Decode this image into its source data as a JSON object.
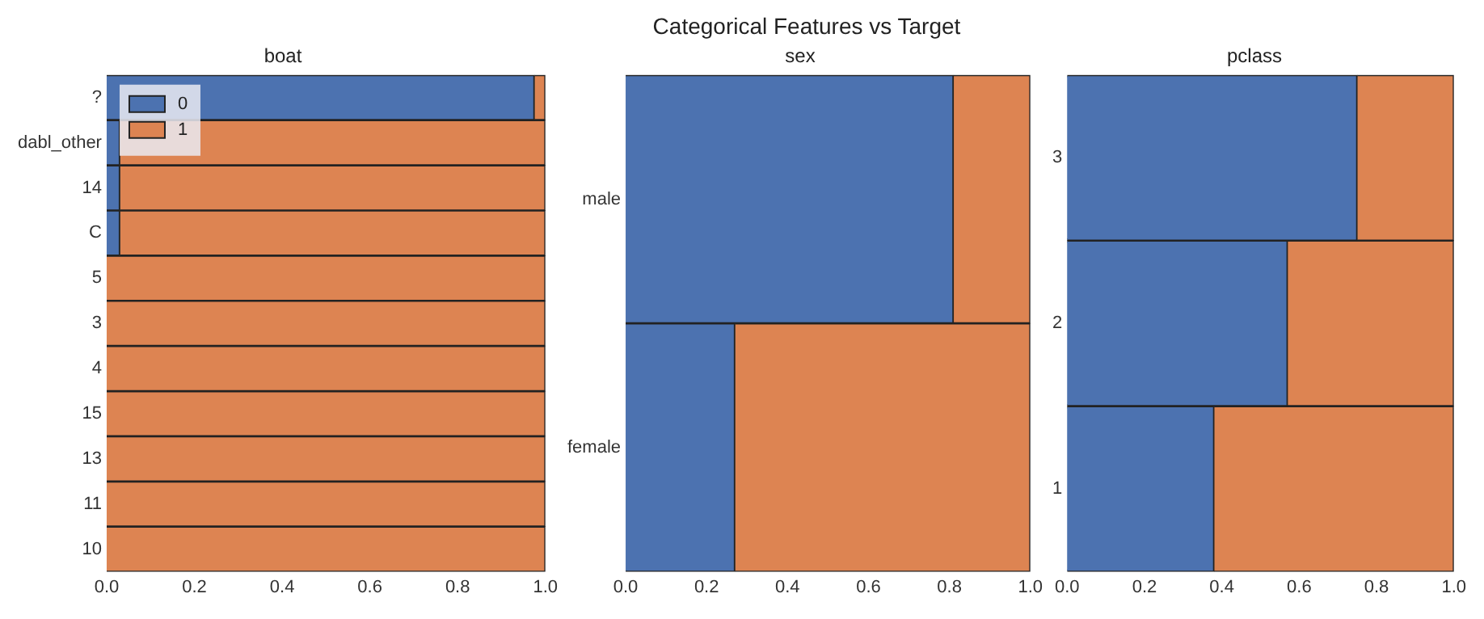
{
  "chart_data": [
    {
      "type": "other",
      "title": "Categorical Features vs Target"
    },
    {
      "type": "bar",
      "title": "boat",
      "orientation": "horizontal",
      "stacked": true,
      "legend": "top left",
      "grid": false,
      "categories": [
        "?",
        "dabl_other",
        "14",
        "C",
        "5",
        "3",
        "4",
        "15",
        "13",
        "11",
        "10"
      ],
      "series": [
        {
          "name": "0",
          "color": "#4c72b0",
          "values": [
            0.975,
            0.03,
            0.03,
            0.03,
            0,
            0,
            0,
            0,
            0,
            0,
            0
          ]
        },
        {
          "name": "1",
          "color": "#dd8452",
          "values": [
            0.025,
            0.97,
            0.97,
            0.97,
            1,
            1,
            1,
            1,
            1,
            1,
            1
          ]
        }
      ],
      "xlim": [
        0,
        1
      ],
      "xticks": [
        {
          "value": 0,
          "label": "0.0"
        },
        {
          "value": 0.2,
          "label": "0.2"
        },
        {
          "value": 0.4,
          "label": "0.4"
        },
        {
          "value": 0.6,
          "label": "0.6"
        },
        {
          "value": 0.8,
          "label": "0.8"
        },
        {
          "value": 1,
          "label": "1.0"
        }
      ]
    },
    {
      "type": "bar",
      "title": "sex",
      "orientation": "horizontal",
      "stacked": true,
      "grid": false,
      "categories": [
        "male",
        "female"
      ],
      "series": [
        {
          "color": "#4c72b0",
          "values": [
            0.81,
            0.27
          ]
        },
        {
          "color": "#dd8452",
          "values": [
            0.19,
            0.73
          ]
        }
      ],
      "xlim": [
        0,
        1
      ],
      "xticks": [
        {
          "value": 0,
          "label": "0.0"
        },
        {
          "value": 0.2,
          "label": "0.2"
        },
        {
          "value": 0.4,
          "label": "0.4"
        },
        {
          "value": 0.6,
          "label": "0.6"
        },
        {
          "value": 0.8,
          "label": "0.8"
        },
        {
          "value": 1,
          "label": "1.0"
        }
      ]
    },
    {
      "type": "bar",
      "title": "pclass",
      "orientation": "horizontal",
      "stacked": true,
      "grid": false,
      "categories": [
        "3",
        "2",
        "1"
      ],
      "series": [
        {
          "color": "#4c72b0",
          "values": [
            0.75,
            0.57,
            0.38
          ]
        },
        {
          "color": "#dd8452",
          "values": [
            0.25,
            0.43,
            0.62
          ]
        }
      ],
      "xlim": [
        0,
        1
      ],
      "xticks": [
        {
          "value": 0,
          "label": "0.0"
        },
        {
          "value": 0.2,
          "label": "0.2"
        },
        {
          "value": 0.4,
          "label": "0.4"
        },
        {
          "value": 0.6,
          "label": "0.6"
        },
        {
          "value": 0.8,
          "label": "0.8"
        },
        {
          "value": 1,
          "label": "1.0"
        }
      ]
    }
  ]
}
